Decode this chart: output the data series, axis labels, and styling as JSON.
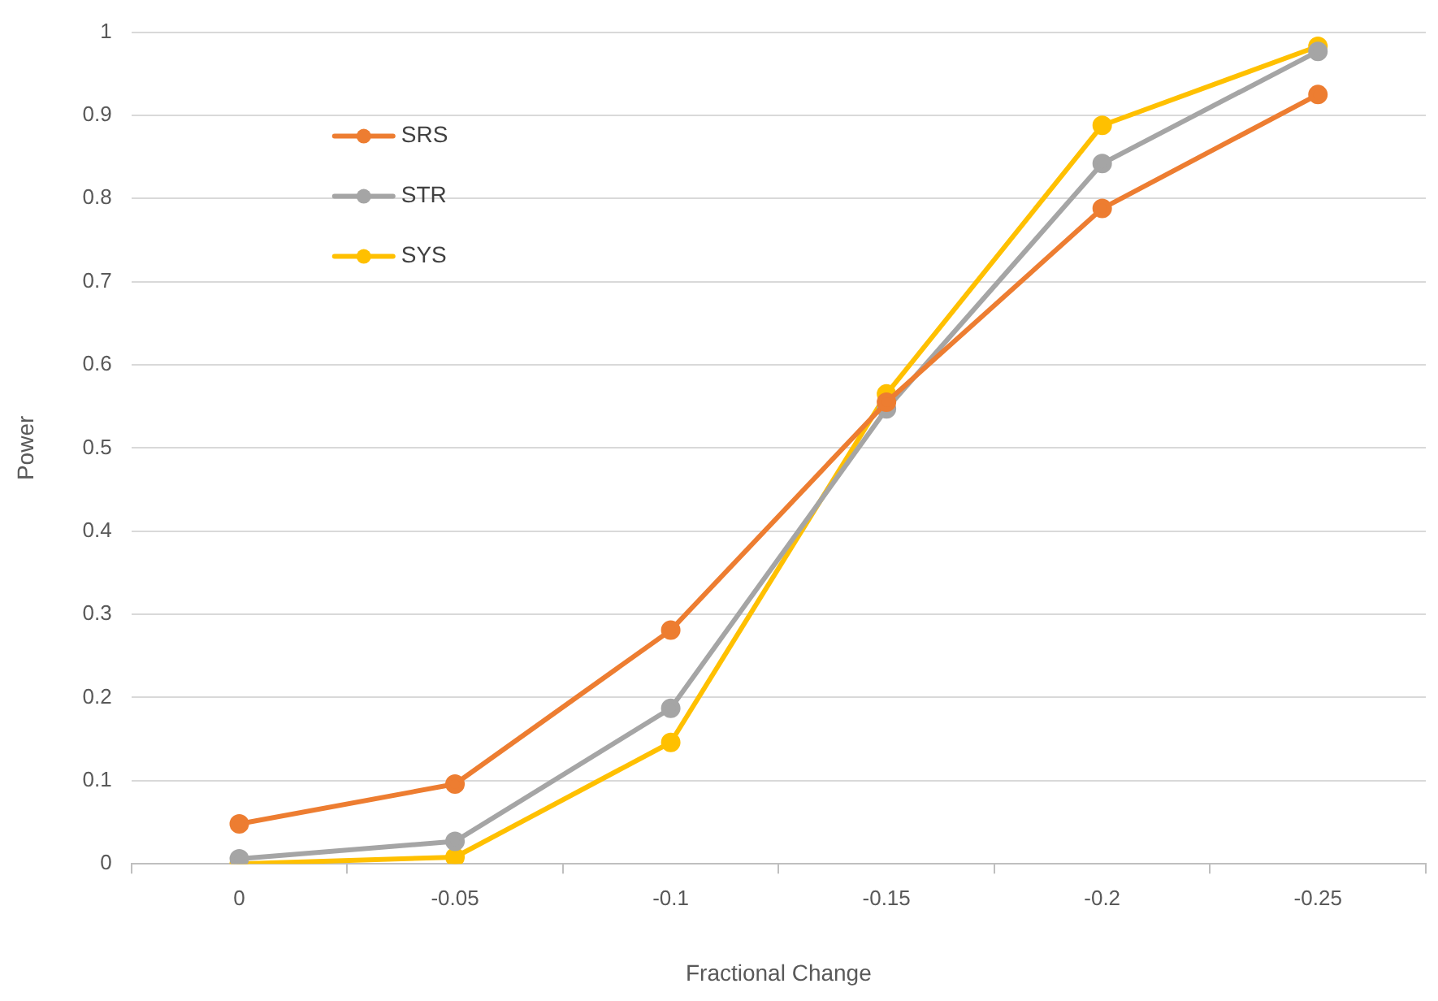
{
  "chart_data": {
    "type": "line",
    "xlabel": "Fractional Change",
    "ylabel": "Power",
    "categories": [
      "0",
      "-0.05",
      "-0.1",
      "-0.15",
      "-0.2",
      "-0.25"
    ],
    "series": [
      {
        "name": "SRS",
        "color": "#ed7d31",
        "values": [
          0.048,
          0.096,
          0.281,
          0.555,
          0.788,
          0.925
        ]
      },
      {
        "name": "STR",
        "color": "#a5a5a5",
        "values": [
          0.006,
          0.027,
          0.187,
          0.547,
          0.842,
          0.977
        ]
      },
      {
        "name": "SYS",
        "color": "#ffc000",
        "values": [
          0,
          0.008,
          0.146,
          0.565,
          0.888,
          0.983
        ]
      }
    ],
    "ylim": [
      0,
      1
    ],
    "yticks": [
      0,
      0.1,
      0.2,
      0.3,
      0.4,
      0.5,
      0.6,
      0.7,
      0.8,
      0.9,
      1
    ],
    "grid": "y",
    "legend": "top left",
    "marker": "circle",
    "line_style": "solid"
  }
}
